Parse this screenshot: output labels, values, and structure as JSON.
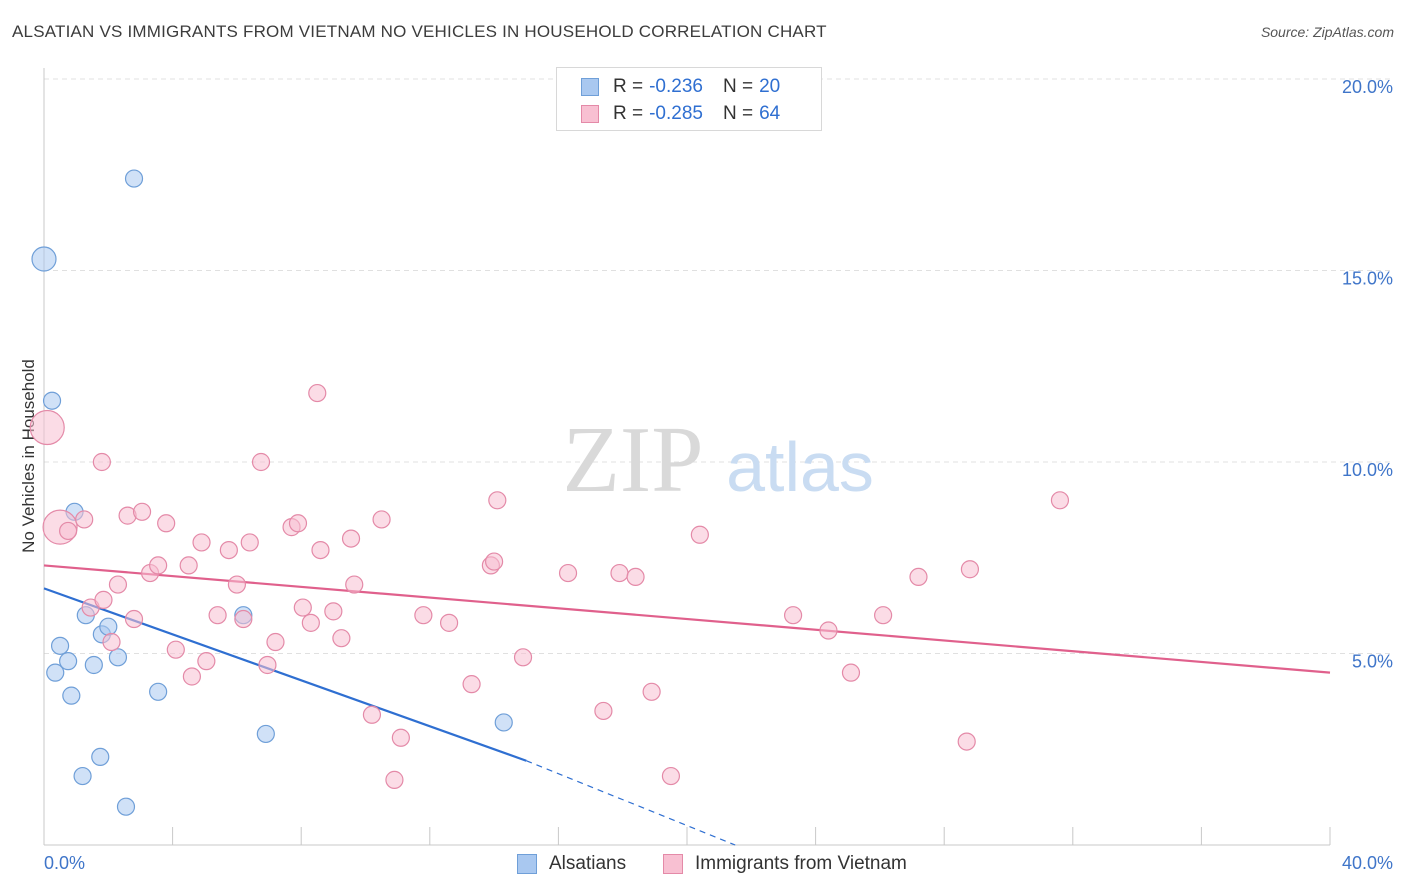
{
  "title": "ALSATIAN VS IMMIGRANTS FROM VIETNAM NO VEHICLES IN HOUSEHOLD CORRELATION CHART",
  "source": "Source: ZipAtlas.com",
  "watermark": {
    "zip": "ZIP",
    "atlas": "atlas"
  },
  "legend": {
    "rows": [
      {
        "r_label": "R =",
        "r_value": "-0.236",
        "n_label": "N =",
        "n_value": "20",
        "color": "#a9c8f0",
        "border": "#6f9fd8"
      },
      {
        "r_label": "R =",
        "r_value": "-0.285",
        "n_label": "N =",
        "n_value": "64",
        "color": "#f8c0d2",
        "border": "#e48aa8"
      }
    ]
  },
  "bottom_legend": [
    {
      "label": "Alsatians",
      "color": "#a9c8f0",
      "border": "#6f9fd8"
    },
    {
      "label": "Immigrants from Vietnam",
      "color": "#f8c0d2",
      "border": "#e48aa8"
    }
  ],
  "chart_data": {
    "type": "scatter",
    "title": "ALSATIAN VS IMMIGRANTS FROM VIETNAM NO VEHICLES IN HOUSEHOLD CORRELATION CHART",
    "xlabel": "",
    "ylabel": "No Vehicles in Household",
    "xlim": [
      0,
      40
    ],
    "ylim": [
      0,
      20
    ],
    "x_tick_labels": [
      "0.0%",
      "40.0%"
    ],
    "y_tick_labels": [
      "5.0%",
      "10.0%",
      "15.0%",
      "20.0%"
    ],
    "y_ticks": [
      5,
      10,
      15,
      20
    ],
    "grid": "horizontal dashed",
    "legend_position": "top-center",
    "series": [
      {
        "name": "Alsatians",
        "color": "#a9c8f0",
        "edge": "#6f9fd8",
        "points": [
          [
            0.0,
            15.3,
            "large"
          ],
          [
            0.25,
            11.6
          ],
          [
            2.8,
            17.4
          ],
          [
            0.95,
            8.7
          ],
          [
            0.5,
            5.2
          ],
          [
            0.35,
            4.5
          ],
          [
            0.75,
            4.8
          ],
          [
            1.3,
            6.0
          ],
          [
            1.8,
            5.5
          ],
          [
            2.0,
            5.7
          ],
          [
            1.55,
            4.7
          ],
          [
            2.3,
            4.9
          ],
          [
            0.85,
            3.9
          ],
          [
            3.55,
            4.0
          ],
          [
            6.2,
            6.0
          ],
          [
            6.9,
            2.9
          ],
          [
            1.75,
            2.3
          ],
          [
            1.2,
            1.8
          ],
          [
            2.55,
            1.0
          ],
          [
            14.3,
            3.2
          ]
        ]
      },
      {
        "name": "Immigrants from Vietnam",
        "color": "#f8c0d2",
        "edge": "#e48aa8",
        "points": [
          [
            0.1,
            10.9,
            "large"
          ],
          [
            0.5,
            8.3,
            "large"
          ],
          [
            0.75,
            8.2
          ],
          [
            1.25,
            8.5
          ],
          [
            1.8,
            10.0
          ],
          [
            2.6,
            8.6
          ],
          [
            3.05,
            8.7
          ],
          [
            3.8,
            8.4
          ],
          [
            4.9,
            7.9
          ],
          [
            5.75,
            7.7
          ],
          [
            6.4,
            7.9
          ],
          [
            6.75,
            10.0
          ],
          [
            7.7,
            8.3
          ],
          [
            7.9,
            8.4
          ],
          [
            8.6,
            7.7
          ],
          [
            8.5,
            11.8
          ],
          [
            9.55,
            8.0
          ],
          [
            10.5,
            8.5
          ],
          [
            14.1,
            9.0
          ],
          [
            13.9,
            7.3
          ],
          [
            14.0,
            7.4
          ],
          [
            16.3,
            7.1
          ],
          [
            17.9,
            7.1
          ],
          [
            18.4,
            7.0
          ],
          [
            20.4,
            8.1
          ],
          [
            27.2,
            7.0
          ],
          [
            28.8,
            7.2
          ],
          [
            31.6,
            9.0
          ],
          [
            1.45,
            6.2
          ],
          [
            1.85,
            6.4
          ],
          [
            2.3,
            6.8
          ],
          [
            2.8,
            5.9
          ],
          [
            3.3,
            7.1
          ],
          [
            3.55,
            7.3
          ],
          [
            4.5,
            7.3
          ],
          [
            5.4,
            6.0
          ],
          [
            6.0,
            6.8
          ],
          [
            6.2,
            5.9
          ],
          [
            7.2,
            5.3
          ],
          [
            8.05,
            6.2
          ],
          [
            8.3,
            5.8
          ],
          [
            9.0,
            6.1
          ],
          [
            9.25,
            5.4
          ],
          [
            9.65,
            6.8
          ],
          [
            11.8,
            6.0
          ],
          [
            12.6,
            5.8
          ],
          [
            2.1,
            5.3
          ],
          [
            4.1,
            5.1
          ],
          [
            4.6,
            4.4
          ],
          [
            5.05,
            4.8
          ],
          [
            6.95,
            4.7
          ],
          [
            14.9,
            4.9
          ],
          [
            10.2,
            3.4
          ],
          [
            11.1,
            2.8
          ],
          [
            10.9,
            1.7
          ],
          [
            13.3,
            4.2
          ],
          [
            17.4,
            3.5
          ],
          [
            18.9,
            4.0
          ],
          [
            19.5,
            1.8
          ],
          [
            23.3,
            6.0
          ],
          [
            24.4,
            5.6
          ],
          [
            25.1,
            4.5
          ],
          [
            26.1,
            6.0
          ],
          [
            28.7,
            2.7
          ]
        ]
      }
    ],
    "trendlines": [
      {
        "series": "Alsatians",
        "x": [
          0,
          15.0
        ],
        "y": [
          6.7,
          2.2
        ],
        "dashed_extension": {
          "x": [
            15.0,
            21.5
          ],
          "y": [
            2.2,
            0.0
          ]
        },
        "color": "#2f6fd1"
      },
      {
        "series": "Immigrants from Vietnam",
        "x": [
          0,
          40
        ],
        "y": [
          7.3,
          4.5
        ],
        "color": "#e0608c"
      }
    ]
  }
}
